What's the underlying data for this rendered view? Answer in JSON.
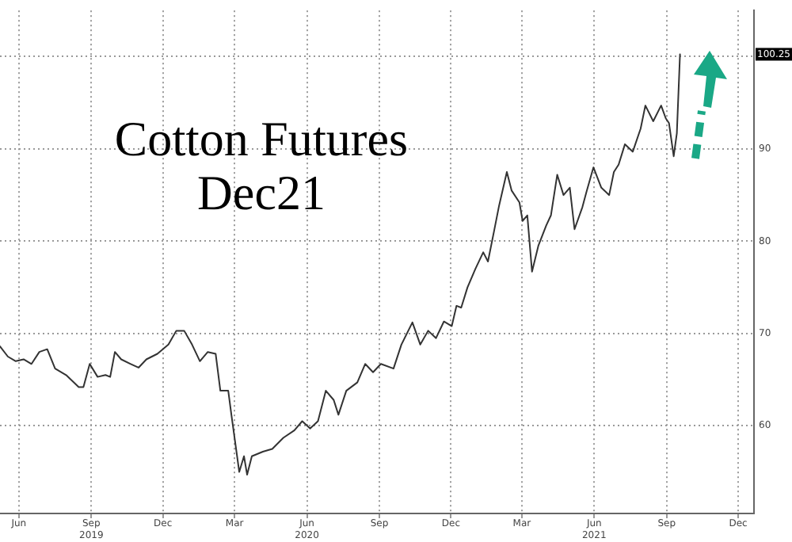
{
  "chart_data": {
    "type": "line",
    "title": "Cotton Futures\nDec21",
    "x": [
      "2019-05-08",
      "2019-05-18",
      "2019-05-28",
      "2019-06-07",
      "2019-06-17",
      "2019-06-27",
      "2019-07-07",
      "2019-07-17",
      "2019-07-31",
      "2019-08-16",
      "2019-08-22",
      "2019-08-30",
      "2019-09-09",
      "2019-09-19",
      "2019-09-25",
      "2019-10-01",
      "2019-10-09",
      "2019-10-21",
      "2019-10-31",
      "2019-11-10",
      "2019-11-24",
      "2019-12-08",
      "2019-12-18",
      "2019-12-28",
      "2020-01-07",
      "2020-01-17",
      "2020-01-27",
      "2020-02-06",
      "2020-02-12",
      "2020-02-22",
      "2020-02-26",
      "2020-03-07",
      "2020-03-13",
      "2020-03-17",
      "2020-03-23",
      "2020-04-06",
      "2020-04-18",
      "2020-05-02",
      "2020-05-16",
      "2020-05-26",
      "2020-06-05",
      "2020-06-15",
      "2020-06-25",
      "2020-07-05",
      "2020-07-11",
      "2020-07-21",
      "2020-08-04",
      "2020-08-14",
      "2020-08-24",
      "2020-09-03",
      "2020-09-19",
      "2020-09-29",
      "2020-10-13",
      "2020-10-23",
      "2020-11-02",
      "2020-11-12",
      "2020-11-22",
      "2020-12-02",
      "2020-12-08",
      "2020-12-14",
      "2020-12-22",
      "2021-01-01",
      "2021-01-11",
      "2021-01-17",
      "2021-01-25",
      "2021-01-31",
      "2021-02-10",
      "2021-02-16",
      "2021-02-26",
      "2021-03-02",
      "2021-03-08",
      "2021-03-14",
      "2021-03-22",
      "2021-04-01",
      "2021-04-07",
      "2021-04-15",
      "2021-04-23",
      "2021-05-01",
      "2021-05-07",
      "2021-05-17",
      "2021-05-22",
      "2021-05-31",
      "2021-06-10",
      "2021-06-20",
      "2021-06-26",
      "2021-07-02",
      "2021-07-10",
      "2021-07-20",
      "2021-07-30",
      "2021-08-05",
      "2021-08-15",
      "2021-08-25",
      "2021-08-31",
      "2021-09-04",
      "2021-09-10",
      "2021-09-14",
      "2021-09-18"
    ],
    "series": [
      {
        "color": "#333333",
        "values": [
          68.6,
          67.5,
          67,
          67.2,
          66.7,
          68,
          68.3,
          66.2,
          65.5,
          64.2,
          64.2,
          66.7,
          65.3,
          65.5,
          65.3,
          68,
          67.2,
          66.7,
          66.3,
          67.2,
          67.8,
          68.8,
          70.3,
          70.3,
          68.8,
          67,
          68,
          67.8,
          63.8,
          63.8,
          61.2,
          55,
          56.7,
          54.7,
          56.7,
          57.2,
          57.5,
          58.7,
          59.5,
          60.5,
          59.7,
          60.5,
          63.8,
          62.8,
          61.2,
          63.8,
          64.7,
          66.7,
          65.8,
          66.7,
          66.2,
          68.8,
          71.2,
          68.8,
          70.3,
          69.5,
          71.3,
          70.8,
          73,
          72.8,
          75,
          77,
          78.8,
          77.8,
          81.2,
          83.8,
          87.5,
          85.5,
          84.2,
          82.2,
          82.8,
          76.7,
          79.5,
          81.7,
          82.8,
          87.2,
          85,
          85.8,
          81.3,
          83.7,
          85.3,
          88,
          85.8,
          85,
          87.5,
          88.3,
          90.5,
          89.7,
          92.2,
          94.7,
          93,
          94.7,
          93.3,
          92.8,
          89.2,
          91.7,
          100.25
        ]
      }
    ],
    "xlim": [
      "2019-05-08",
      "2021-12-21"
    ],
    "xticks": [
      {
        "value": "2019-06-01",
        "label": "Jun"
      },
      {
        "value": "2019-09-01",
        "label": "Sep\n2019"
      },
      {
        "value": "2019-12-01",
        "label": "Dec"
      },
      {
        "value": "2020-03-01",
        "label": "Mar"
      },
      {
        "value": "2020-06-01",
        "label": "Jun\n2020"
      },
      {
        "value": "2020-09-01",
        "label": "Sep"
      },
      {
        "value": "2020-12-01",
        "label": "Dec"
      },
      {
        "value": "2021-03-01",
        "label": "Mar"
      },
      {
        "value": "2021-06-01",
        "label": "Jun\n2021"
      },
      {
        "value": "2021-09-01",
        "label": "Sep"
      },
      {
        "value": "2021-12-01",
        "label": "Dec"
      }
    ],
    "ylim": [
      50.5,
      105
    ],
    "yticks": [
      60,
      70,
      80,
      90,
      {
        "value": 100,
        "label": null
      }
    ],
    "annotations": [
      "100.25"
    ],
    "grid": true,
    "line_style": "solid",
    "marker": "none",
    "legend": false
  }
}
